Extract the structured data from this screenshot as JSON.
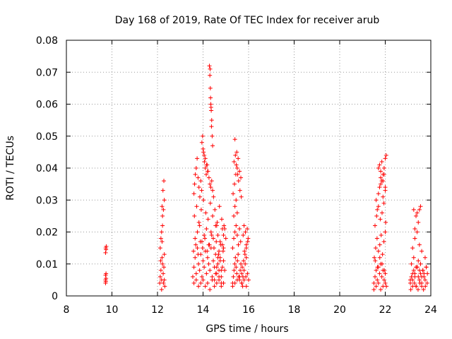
{
  "chart_data": {
    "type": "scatter",
    "title": "Day 168 of 2019, Rate Of TEC Index for receiver arub",
    "xlabel": "GPS time / hours",
    "ylabel": "ROTI / TECUs",
    "xlim": [
      8,
      24
    ],
    "ylim": [
      0,
      0.08
    ],
    "x_ticks": [
      8,
      10,
      12,
      14,
      16,
      18,
      20,
      22,
      24
    ],
    "x_tick_labels": [
      "8",
      "10",
      "12",
      "14",
      "16",
      "18",
      "20",
      "22",
      "24"
    ],
    "y_ticks": [
      0,
      0.01,
      0.02,
      0.03,
      0.04,
      0.05,
      0.06,
      0.07,
      0.08
    ],
    "y_tick_labels": [
      "0",
      "0.01",
      "0.02",
      "0.03",
      "0.04",
      "0.05",
      "0.06",
      "0.07",
      "0.08"
    ],
    "grid": true,
    "marker": "+",
    "marker_color": "#ff0000",
    "series": [
      {
        "name": "ROTI",
        "x": [
          9.72,
          9.72,
          9.73,
          9.74,
          9.72,
          9.74,
          9.73,
          9.75,
          9.72,
          9.74,
          12.1,
          12.12,
          12.15,
          12.18,
          12.2,
          12.22,
          12.25,
          12.28,
          12.3,
          12.32,
          12.12,
          12.18,
          12.22,
          12.26,
          12.3,
          12.15,
          12.2,
          12.24,
          12.28,
          12.14,
          12.22,
          12.3,
          12.18,
          12.26,
          12.2,
          13.55,
          13.6,
          13.65,
          13.7,
          13.75,
          13.8,
          13.85,
          13.9,
          13.95,
          14.0,
          14.05,
          14.1,
          14.15,
          14.2,
          14.25,
          14.3,
          14.35,
          14.4,
          14.45,
          14.5,
          14.55,
          14.6,
          14.65,
          14.7,
          14.75,
          14.8,
          14.85,
          14.9,
          14.95,
          13.6,
          13.7,
          13.8,
          13.9,
          14.0,
          14.1,
          14.2,
          14.3,
          14.4,
          14.5,
          14.6,
          14.7,
          14.8,
          14.9,
          13.65,
          13.75,
          13.85,
          13.95,
          14.05,
          14.15,
          14.25,
          14.35,
          14.45,
          14.55,
          14.65,
          14.75,
          14.85,
          13.62,
          13.72,
          13.82,
          13.92,
          14.02,
          14.12,
          14.22,
          14.32,
          14.42,
          14.52,
          14.62,
          14.72,
          14.82,
          14.92,
          13.58,
          13.68,
          13.78,
          13.88,
          13.98,
          14.08,
          14.18,
          14.28,
          14.38,
          14.48,
          14.58,
          14.68,
          14.78,
          14.88,
          13.6,
          13.63,
          13.66,
          13.7,
          13.74,
          13.78,
          13.82,
          13.86,
          13.9,
          13.94,
          13.98,
          14.02,
          14.06,
          14.1,
          14.14,
          14.18,
          14.22,
          14.26,
          14.3,
          14.34,
          14.38,
          14.42,
          14.46,
          14.28,
          14.3,
          14.32,
          14.34,
          14.36,
          14.38,
          14.4,
          14.42,
          14.31,
          14.33,
          14.35,
          14.37,
          13.95,
          14.0,
          14.05,
          14.1,
          14.15,
          14.2,
          14.5,
          14.55,
          14.6,
          14.65,
          14.7,
          14.75,
          14.8,
          14.85,
          14.9,
          14.95,
          15.0,
          14.6,
          14.7,
          14.8,
          14.9,
          15.3,
          15.33,
          15.36,
          15.39,
          15.42,
          15.45,
          15.48,
          15.51,
          15.54,
          15.57,
          15.6,
          15.63,
          15.66,
          15.7,
          15.3,
          15.35,
          15.4,
          15.45,
          15.5,
          15.55,
          15.6,
          15.65,
          15.35,
          15.4,
          15.45,
          15.5,
          15.32,
          15.38,
          15.44,
          15.5,
          15.56,
          15.62,
          15.68,
          15.36,
          15.42,
          15.48,
          15.54,
          15.6,
          15.66,
          15.4,
          15.46,
          15.52,
          15.7,
          15.75,
          15.8,
          15.85,
          15.9,
          15.95,
          16.0,
          15.72,
          15.78,
          15.84,
          15.9,
          15.96,
          15.74,
          15.82,
          15.9,
          15.98,
          15.76,
          15.86,
          15.94,
          15.8,
          15.88,
          15.3,
          15.4,
          15.5,
          15.6,
          15.7,
          15.8,
          15.9,
          21.5,
          21.55,
          21.6,
          21.65,
          21.7,
          21.75,
          21.8,
          21.85,
          21.9,
          21.95,
          22.0,
          22.05,
          21.52,
          21.58,
          21.64,
          21.7,
          21.76,
          21.82,
          21.88,
          21.94,
          22.0,
          21.55,
          21.62,
          21.7,
          21.78,
          21.86,
          21.94,
          22.02,
          21.6,
          21.7,
          21.8,
          21.9,
          22.0,
          21.65,
          21.75,
          21.85,
          21.95,
          21.7,
          21.75,
          21.8,
          21.85,
          21.9,
          21.95,
          22.0,
          22.04,
          21.8,
          21.9,
          22.0,
          21.5,
          21.6,
          21.7,
          21.8,
          21.9,
          22.0,
          21.56,
          21.66,
          21.76,
          21.86,
          21.96,
          23.1,
          23.15,
          23.2,
          23.25,
          23.3,
          23.35,
          23.4,
          23.45,
          23.5,
          23.55,
          23.6,
          23.65,
          23.7,
          23.75,
          23.8,
          23.85,
          23.12,
          23.2,
          23.28,
          23.36,
          23.44,
          23.52,
          23.6,
          23.68,
          23.76,
          23.84,
          23.15,
          23.25,
          23.35,
          23.45,
          23.55,
          23.65,
          23.75,
          23.2,
          23.3,
          23.4,
          23.5,
          23.6,
          23.3,
          23.4,
          23.5,
          23.55,
          23.35,
          23.45,
          23.25,
          23.1,
          23.2,
          23.3,
          23.4,
          23.5,
          23.6,
          23.7,
          23.8
        ],
        "y": [
          0.005,
          0.0065,
          0.0045,
          0.007,
          0.0135,
          0.0145,
          0.015,
          0.0155,
          0.004,
          0.0055,
          0.004,
          0.006,
          0.008,
          0.005,
          0.012,
          0.01,
          0.007,
          0.009,
          0.005,
          0.003,
          0.015,
          0.02,
          0.025,
          0.027,
          0.03,
          0.018,
          0.028,
          0.033,
          0.036,
          0.011,
          0.022,
          0.013,
          0.002,
          0.004,
          0.017,
          0.006,
          0.009,
          0.012,
          0.007,
          0.015,
          0.01,
          0.008,
          0.013,
          0.006,
          0.011,
          0.009,
          0.014,
          0.007,
          0.012,
          0.01,
          0.008,
          0.015,
          0.006,
          0.011,
          0.009,
          0.013,
          0.007,
          0.01,
          0.008,
          0.012,
          0.006,
          0.009,
          0.011,
          0.008,
          0.004,
          0.005,
          0.003,
          0.004,
          0.005,
          0.003,
          0.004,
          0.002,
          0.005,
          0.003,
          0.004,
          0.005,
          0.003,
          0.004,
          0.018,
          0.02,
          0.022,
          0.017,
          0.019,
          0.021,
          0.016,
          0.02,
          0.018,
          0.022,
          0.019,
          0.017,
          0.021,
          0.025,
          0.028,
          0.023,
          0.027,
          0.03,
          0.026,
          0.024,
          0.029,
          0.025,
          0.027,
          0.023,
          0.028,
          0.024,
          0.022,
          0.014,
          0.016,
          0.013,
          0.017,
          0.015,
          0.018,
          0.014,
          0.016,
          0.019,
          0.015,
          0.017,
          0.013,
          0.016,
          0.014,
          0.032,
          0.035,
          0.038,
          0.04,
          0.043,
          0.037,
          0.034,
          0.031,
          0.036,
          0.033,
          0.05,
          0.045,
          0.042,
          0.04,
          0.038,
          0.041,
          0.039,
          0.037,
          0.035,
          0.034,
          0.036,
          0.033,
          0.031,
          0.072,
          0.069,
          0.065,
          0.06,
          0.058,
          0.055,
          0.05,
          0.047,
          0.071,
          0.062,
          0.059,
          0.053,
          0.048,
          0.046,
          0.044,
          0.043,
          0.041,
          0.039,
          0.005,
          0.007,
          0.009,
          0.012,
          0.014,
          0.011,
          0.008,
          0.016,
          0.019,
          0.021,
          0.018,
          0.022,
          0.006,
          0.004,
          0.015,
          0.004,
          0.006,
          0.008,
          0.01,
          0.012,
          0.009,
          0.007,
          0.011,
          0.013,
          0.006,
          0.005,
          0.008,
          0.01,
          0.007,
          0.015,
          0.018,
          0.02,
          0.022,
          0.019,
          0.016,
          0.021,
          0.017,
          0.025,
          0.028,
          0.03,
          0.026,
          0.032,
          0.035,
          0.038,
          0.04,
          0.036,
          0.033,
          0.031,
          0.042,
          0.044,
          0.045,
          0.043,
          0.039,
          0.037,
          0.049,
          0.041,
          0.038,
          0.004,
          0.006,
          0.008,
          0.01,
          0.012,
          0.007,
          0.005,
          0.009,
          0.011,
          0.013,
          0.015,
          0.017,
          0.003,
          0.014,
          0.016,
          0.018,
          0.019,
          0.02,
          0.021,
          0.022,
          0.006,
          0.003,
          0.004,
          0.005,
          0.006,
          0.004,
          0.005,
          0.003,
          0.004,
          0.006,
          0.008,
          0.005,
          0.009,
          0.007,
          0.01,
          0.006,
          0.008,
          0.005,
          0.007,
          0.003,
          0.012,
          0.015,
          0.018,
          0.014,
          0.016,
          0.019,
          0.013,
          0.017,
          0.02,
          0.022,
          0.025,
          0.028,
          0.024,
          0.026,
          0.029,
          0.023,
          0.03,
          0.032,
          0.035,
          0.031,
          0.033,
          0.027,
          0.034,
          0.036,
          0.038,
          0.04,
          0.041,
          0.039,
          0.042,
          0.038,
          0.04,
          0.043,
          0.044,
          0.037,
          0.036,
          0.034,
          0.002,
          0.003,
          0.004,
          0.002,
          0.003,
          0.004,
          0.011,
          0.009,
          0.012,
          0.01,
          0.008,
          0.004,
          0.006,
          0.005,
          0.008,
          0.007,
          0.003,
          0.009,
          0.006,
          0.005,
          0.007,
          0.004,
          0.008,
          0.006,
          0.005,
          0.009,
          0.007,
          0.002,
          0.003,
          0.004,
          0.003,
          0.002,
          0.004,
          0.003,
          0.002,
          0.003,
          0.004,
          0.01,
          0.012,
          0.009,
          0.011,
          0.01,
          0.008,
          0.012,
          0.015,
          0.018,
          0.02,
          0.016,
          0.014,
          0.021,
          0.026,
          0.027,
          0.028,
          0.025,
          0.023,
          0.027,
          0.005,
          0.007,
          0.006,
          0.009,
          0.008,
          0.006,
          0.007,
          0.009
        ]
      }
    ]
  }
}
